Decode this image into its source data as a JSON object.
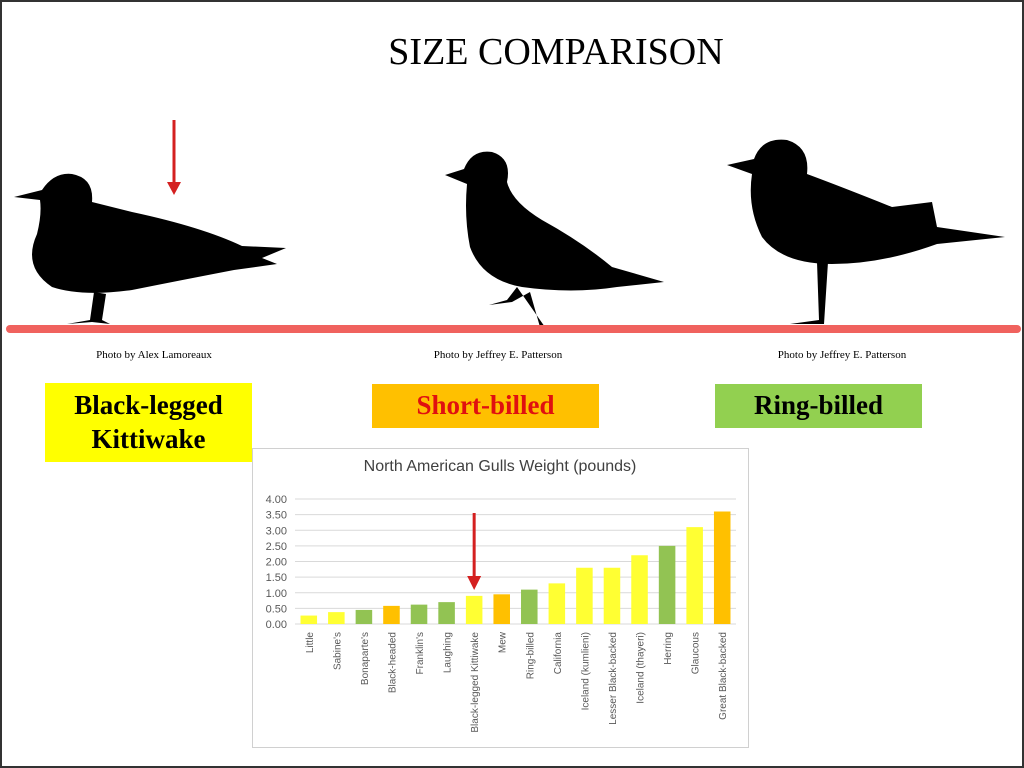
{
  "title": "SIZE COMPARISON",
  "credits": [
    "Photo by Alex Lamoreaux",
    "Photo by Jeffrey E. Patterson",
    "Photo by Jeffrey E. Patterson"
  ],
  "species": [
    "Black-legged Kittiwake",
    "Short-billed",
    "Ring-billed"
  ],
  "chart_data": {
    "type": "bar",
    "title": "North  American Gulls Weight (pounds)",
    "categories": [
      "Little",
      "Sabine's",
      "Bonaparte's",
      "Black-headed",
      "Franklin's",
      "Laughing",
      "Black-legged Kittiwake",
      "Mew",
      "Ring-billed",
      "California",
      "Iceland (kumlieni)",
      "Lesser Black-backed",
      "Iceland (thayeri)",
      "Herring",
      "Glaucous",
      "Great Black-backed"
    ],
    "values": [
      0.27,
      0.38,
      0.45,
      0.58,
      0.62,
      0.7,
      0.9,
      0.95,
      1.1,
      1.3,
      1.8,
      1.8,
      2.2,
      2.5,
      3.1,
      3.6
    ],
    "colors": [
      "#ffff33",
      "#ffff33",
      "#92c353",
      "#ffc000",
      "#92c353",
      "#92c353",
      "#ffff33",
      "#ffc000",
      "#92c353",
      "#ffff33",
      "#ffff33",
      "#ffff33",
      "#ffff33",
      "#92c353",
      "#ffff33",
      "#ffc000"
    ],
    "ylim": [
      0,
      4
    ],
    "yticks": [
      {
        "value": 0,
        "label": "0.00"
      },
      {
        "value": 0.5,
        "label": "0.50"
      },
      {
        "value": 1,
        "label": "1.00"
      },
      {
        "value": 1.5,
        "label": "1.50"
      },
      {
        "value": 2,
        "label": "2.00"
      },
      {
        "value": 2.5,
        "label": "2.50"
      },
      {
        "value": 3,
        "label": "3.00"
      },
      {
        "value": 3.5,
        "label": "3.50"
      },
      {
        "value": 4,
        "label": "4.00"
      }
    ],
    "grid": true
  }
}
